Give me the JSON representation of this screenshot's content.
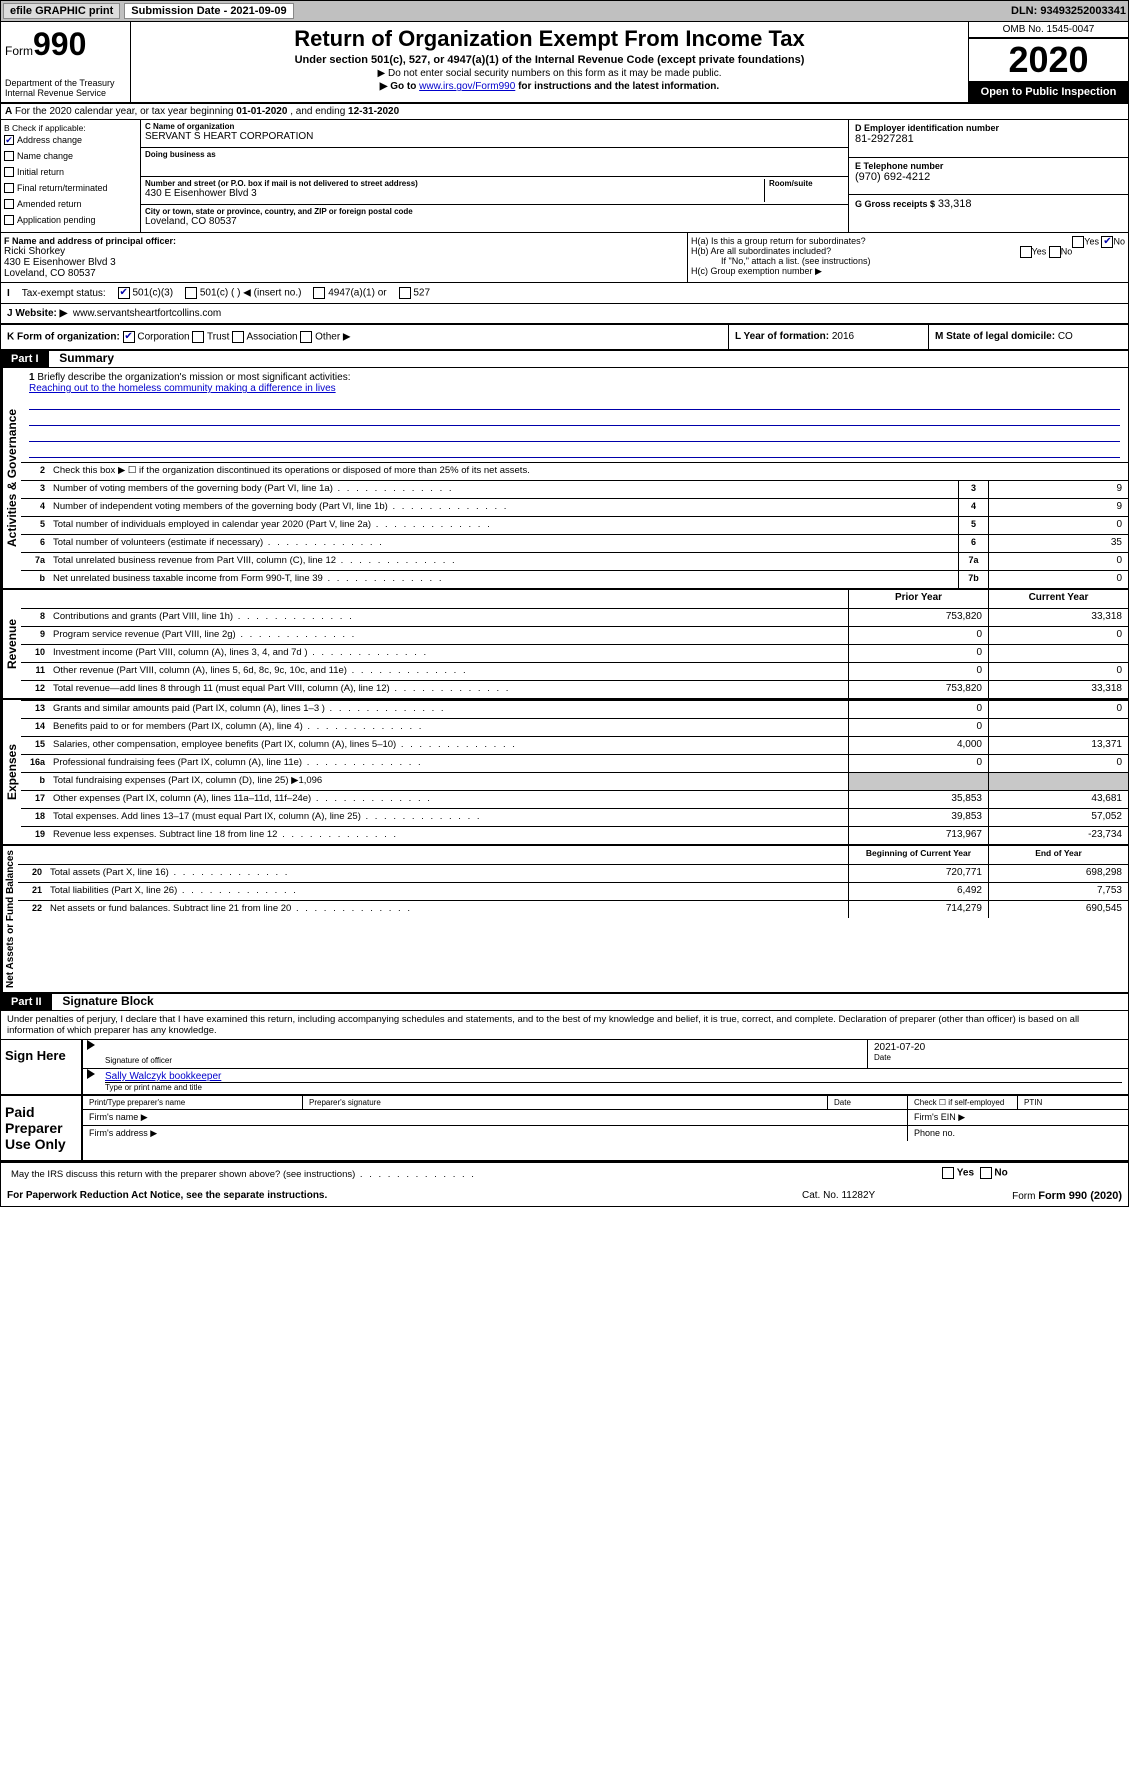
{
  "topbar": {
    "efile": "efile GRAPHIC print",
    "sub_label": "Submission Date - 2021-09-09",
    "dln": "DLN: 93493252003341"
  },
  "header": {
    "form_word": "Form",
    "form_num": "990",
    "dept": "Department of the Treasury\nInternal Revenue Service",
    "title": "Return of Organization Exempt From Income Tax",
    "subtitle": "Under section 501(c), 527, or 4947(a)(1) of the Internal Revenue Code (except private foundations)",
    "instr1": "▶ Do not enter social security numbers on this form as it may be made public.",
    "instr2_a": "▶ Go to ",
    "instr2_link": "www.irs.gov/Form990",
    "instr2_b": " for instructions and the latest information.",
    "omb": "OMB No. 1545-0047",
    "year": "2020",
    "open": "Open to Public Inspection"
  },
  "A": {
    "text_a": "For the 2020 calendar year, or tax year beginning ",
    "begin": "01-01-2020",
    "text_b": " , and ending ",
    "end": "12-31-2020"
  },
  "B": {
    "hdr": "B Check if applicable:",
    "items": [
      {
        "label": "Address change",
        "checked": true
      },
      {
        "label": "Name change",
        "checked": false
      },
      {
        "label": "Initial return",
        "checked": false
      },
      {
        "label": "Final return/terminated",
        "checked": false
      },
      {
        "label": "Amended return",
        "checked": false
      },
      {
        "label": "Application pending",
        "checked": false
      }
    ]
  },
  "C": {
    "name_lab": "C Name of organization",
    "name": "SERVANT S HEART CORPORATION",
    "dba_lab": "Doing business as",
    "dba": "",
    "addr_lab": "Number and street (or P.O. box if mail is not delivered to street address)",
    "room_lab": "Room/suite",
    "addr": "430 E Eisenhower Blvd 3",
    "city_lab": "City or town, state or province, country, and ZIP or foreign postal code",
    "city": "Loveland, CO  80537"
  },
  "D": {
    "lab": "D Employer identification number",
    "val": "81-2927281"
  },
  "E": {
    "lab": "E Telephone number",
    "val": "(970) 692-4212"
  },
  "G": {
    "lab": "G Gross receipts $",
    "val": "33,318"
  },
  "F": {
    "lab": "F  Name and address of principal officer:",
    "name": "Ricki Shorkey",
    "addr": "430 E Eisenhower Blvd 3\nLoveland, CO  80537"
  },
  "H": {
    "a": "H(a)  Is this a group return for subordinates?",
    "a_yes": "Yes",
    "a_no": "No",
    "b": "H(b)  Are all subordinates included?",
    "b_yes": "Yes",
    "b_no": "No",
    "b_note": "If \"No,\" attach a list. (see instructions)",
    "c": "H(c)  Group exemption number ▶"
  },
  "I": {
    "lab": "Tax-exempt status:",
    "opts": [
      "501(c)(3)",
      "501(c) (  ) ◀ (insert no.)",
      "4947(a)(1) or",
      "527"
    ]
  },
  "J": {
    "lab": "Website: ▶",
    "val": "www.servantsheartfortcollins.com"
  },
  "K": {
    "lab": "K Form of organization:",
    "opts": [
      "Corporation",
      "Trust",
      "Association",
      "Other ▶"
    ]
  },
  "L": {
    "lab": "L Year of formation:",
    "val": "2016"
  },
  "M": {
    "lab": "M State of legal domicile:",
    "val": "CO"
  },
  "part1": {
    "hd": "Part I",
    "title": "Summary",
    "vtab_gov": "Activities & Governance",
    "vtab_rev": "Revenue",
    "vtab_exp": "Expenses",
    "vtab_net": "Net Assets or Fund Balances",
    "l1_lab": "Briefly describe the organization's mission or most significant activities:",
    "l1_val": "Reaching out to the homeless community making a difference in lives",
    "l2": "Check this box ▶ ☐  if the organization discontinued its operations or disposed of more than 25% of its net assets.",
    "col_prior": "Prior Year",
    "col_current": "Current Year",
    "col_begin": "Beginning of Current Year",
    "col_end": "End of Year",
    "lines_gov": [
      {
        "n": "3",
        "t": "Number of voting members of the governing body (Part VI, line 1a)",
        "b": "3",
        "v": "9"
      },
      {
        "n": "4",
        "t": "Number of independent voting members of the governing body (Part VI, line 1b)",
        "b": "4",
        "v": "9"
      },
      {
        "n": "5",
        "t": "Total number of individuals employed in calendar year 2020 (Part V, line 2a)",
        "b": "5",
        "v": "0"
      },
      {
        "n": "6",
        "t": "Total number of volunteers (estimate if necessary)",
        "b": "6",
        "v": "35"
      },
      {
        "n": "7a",
        "t": "Total unrelated business revenue from Part VIII, column (C), line 12",
        "b": "7a",
        "v": "0"
      },
      {
        "n": "b",
        "t": "Net unrelated business taxable income from Form 990-T, line 39",
        "b": "7b",
        "v": "0"
      }
    ],
    "lines_rev": [
      {
        "n": "8",
        "t": "Contributions and grants (Part VIII, line 1h)",
        "p": "753,820",
        "c": "33,318"
      },
      {
        "n": "9",
        "t": "Program service revenue (Part VIII, line 2g)",
        "p": "0",
        "c": "0"
      },
      {
        "n": "10",
        "t": "Investment income (Part VIII, column (A), lines 3, 4, and 7d )",
        "p": "0",
        "c": ""
      },
      {
        "n": "11",
        "t": "Other revenue (Part VIII, column (A), lines 5, 6d, 8c, 9c, 10c, and 11e)",
        "p": "0",
        "c": "0"
      },
      {
        "n": "12",
        "t": "Total revenue—add lines 8 through 11 (must equal Part VIII, column (A), line 12)",
        "p": "753,820",
        "c": "33,318"
      }
    ],
    "lines_exp": [
      {
        "n": "13",
        "t": "Grants and similar amounts paid (Part IX, column (A), lines 1–3 )",
        "p": "0",
        "c": "0"
      },
      {
        "n": "14",
        "t": "Benefits paid to or for members (Part IX, column (A), line 4)",
        "p": "0",
        "c": ""
      },
      {
        "n": "15",
        "t": "Salaries, other compensation, employee benefits (Part IX, column (A), lines 5–10)",
        "p": "4,000",
        "c": "13,371"
      },
      {
        "n": "16a",
        "t": "Professional fundraising fees (Part IX, column (A), line 11e)",
        "p": "0",
        "c": "0"
      },
      {
        "n": "b",
        "t": "Total fundraising expenses (Part IX, column (D), line 25) ▶1,096",
        "p": "",
        "c": "",
        "shade": true
      },
      {
        "n": "17",
        "t": "Other expenses (Part IX, column (A), lines 11a–11d, 11f–24e)",
        "p": "35,853",
        "c": "43,681"
      },
      {
        "n": "18",
        "t": "Total expenses. Add lines 13–17 (must equal Part IX, column (A), line 25)",
        "p": "39,853",
        "c": "57,052"
      },
      {
        "n": "19",
        "t": "Revenue less expenses. Subtract line 18 from line 12",
        "p": "713,967",
        "c": "-23,734"
      }
    ],
    "lines_net": [
      {
        "n": "20",
        "t": "Total assets (Part X, line 16)",
        "p": "720,771",
        "c": "698,298"
      },
      {
        "n": "21",
        "t": "Total liabilities (Part X, line 26)",
        "p": "6,492",
        "c": "7,753"
      },
      {
        "n": "22",
        "t": "Net assets or fund balances. Subtract line 21 from line 20",
        "p": "714,279",
        "c": "690,545"
      }
    ]
  },
  "part2": {
    "hd": "Part II",
    "title": "Signature Block",
    "perjury": "Under penalties of perjury, I declare that I have examined this return, including accompanying schedules and statements, and to the best of my knowledge and belief, it is true, correct, and complete. Declaration of preparer (other than officer) is based on all information of which preparer has any knowledge.",
    "sign_here": "Sign Here",
    "sig_officer": "Signature of officer",
    "sig_date": "2021-07-20",
    "date_lab": "Date",
    "typed_name": "Sally Walczyk  bookkeeper",
    "typed_lab": "Type or print name and title",
    "paid": "Paid Preparer Use Only",
    "prep_name": "Print/Type preparer's name",
    "prep_sig": "Preparer's signature",
    "prep_date": "Date",
    "prep_chk": "Check ☐ if self-employed",
    "ptin": "PTIN",
    "firm_name": "Firm's name  ▶",
    "firm_ein": "Firm's EIN ▶",
    "firm_addr": "Firm's address ▶",
    "phone": "Phone no.",
    "discuss": "May the IRS discuss this return with the preparer shown above? (see instructions)",
    "yes": "Yes",
    "no": "No"
  },
  "footer": {
    "pra": "For Paperwork Reduction Act Notice, see the separate instructions.",
    "cat": "Cat. No. 11282Y",
    "form": "Form 990 (2020)"
  }
}
